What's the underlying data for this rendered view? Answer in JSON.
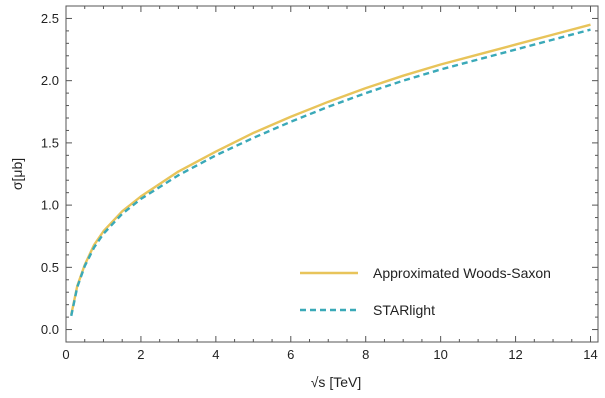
{
  "chart_data": {
    "type": "line",
    "title": "",
    "xlabel": "√s [TeV]",
    "ylabel": "σ[μb]",
    "xlim": [
      0,
      14.2
    ],
    "ylim": [
      -0.1,
      2.6
    ],
    "x_ticks": [
      0,
      2,
      4,
      6,
      8,
      10,
      12,
      14
    ],
    "y_ticks": [
      0.0,
      0.5,
      1.0,
      1.5,
      2.0,
      2.5
    ],
    "x_tick_labels": [
      "0",
      "2",
      "4",
      "6",
      "8",
      "10",
      "12",
      "14"
    ],
    "y_tick_labels": [
      "0.0",
      "0.5",
      "1.0",
      "1.5",
      "2.0",
      "2.5"
    ],
    "grid": false,
    "legend_position": "bottom-right",
    "series": [
      {
        "name": "Approximated Woods-Saxon",
        "color": "#E8C45A",
        "dash": "solid",
        "x": [
          0.14,
          0.3,
          0.5,
          0.75,
          1,
          1.5,
          2,
          3,
          4,
          5,
          6,
          7,
          8,
          9,
          10,
          11,
          12,
          13,
          14
        ],
        "y": [
          0.12,
          0.35,
          0.52,
          0.68,
          0.79,
          0.95,
          1.07,
          1.27,
          1.43,
          1.58,
          1.71,
          1.83,
          1.94,
          2.04,
          2.13,
          2.21,
          2.29,
          2.37,
          2.45
        ]
      },
      {
        "name": "STARlight",
        "color": "#3AA9B8",
        "dash": "dashed",
        "x": [
          0.14,
          0.3,
          0.5,
          0.75,
          1,
          1.5,
          2,
          3,
          4,
          5,
          6,
          7,
          8,
          9,
          10,
          11,
          12,
          13,
          14
        ],
        "y": [
          0.11,
          0.34,
          0.51,
          0.66,
          0.77,
          0.93,
          1.05,
          1.24,
          1.4,
          1.54,
          1.67,
          1.79,
          1.9,
          2.0,
          2.09,
          2.17,
          2.25,
          2.33,
          2.41
        ]
      }
    ]
  }
}
